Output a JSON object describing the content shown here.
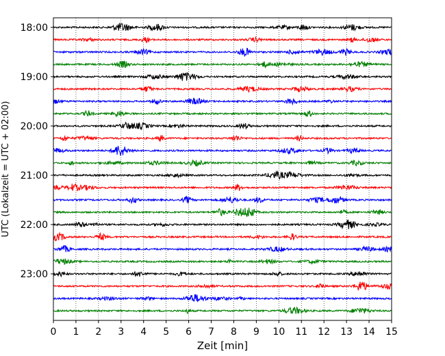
{
  "chart_data": {
    "type": "line",
    "title": "",
    "xlabel": "Zeit  [min]",
    "ylabel": "UTC (Lokalzeit = UTC + 02:00)",
    "xlim": [
      0,
      15
    ],
    "xticks": [
      "0",
      "1",
      "2",
      "3",
      "4",
      "5",
      "6",
      "7",
      "8",
      "9",
      "10",
      "11",
      "12",
      "13",
      "14",
      "15"
    ],
    "ytick_labels": [
      "18:00",
      "19:00",
      "20:00",
      "21:00",
      "22:00",
      "23:00"
    ],
    "trace_start_times": [
      "18:00",
      "18:15",
      "18:30",
      "18:45",
      "19:00",
      "19:15",
      "19:30",
      "19:45",
      "20:00",
      "20:15",
      "20:30",
      "20:45",
      "21:00",
      "21:15",
      "21:30",
      "21:45",
      "22:00",
      "22:15",
      "22:30",
      "22:45",
      "23:00",
      "23:15",
      "23:30",
      "23:45"
    ],
    "trace_colors": [
      "#000000",
      "#ff0000",
      "#0000ff",
      "#008000"
    ],
    "vertical_grid": "dotted",
    "series_note": "one seismogram trace per 15-minute interval, colors cycle black, red, blue, green"
  }
}
